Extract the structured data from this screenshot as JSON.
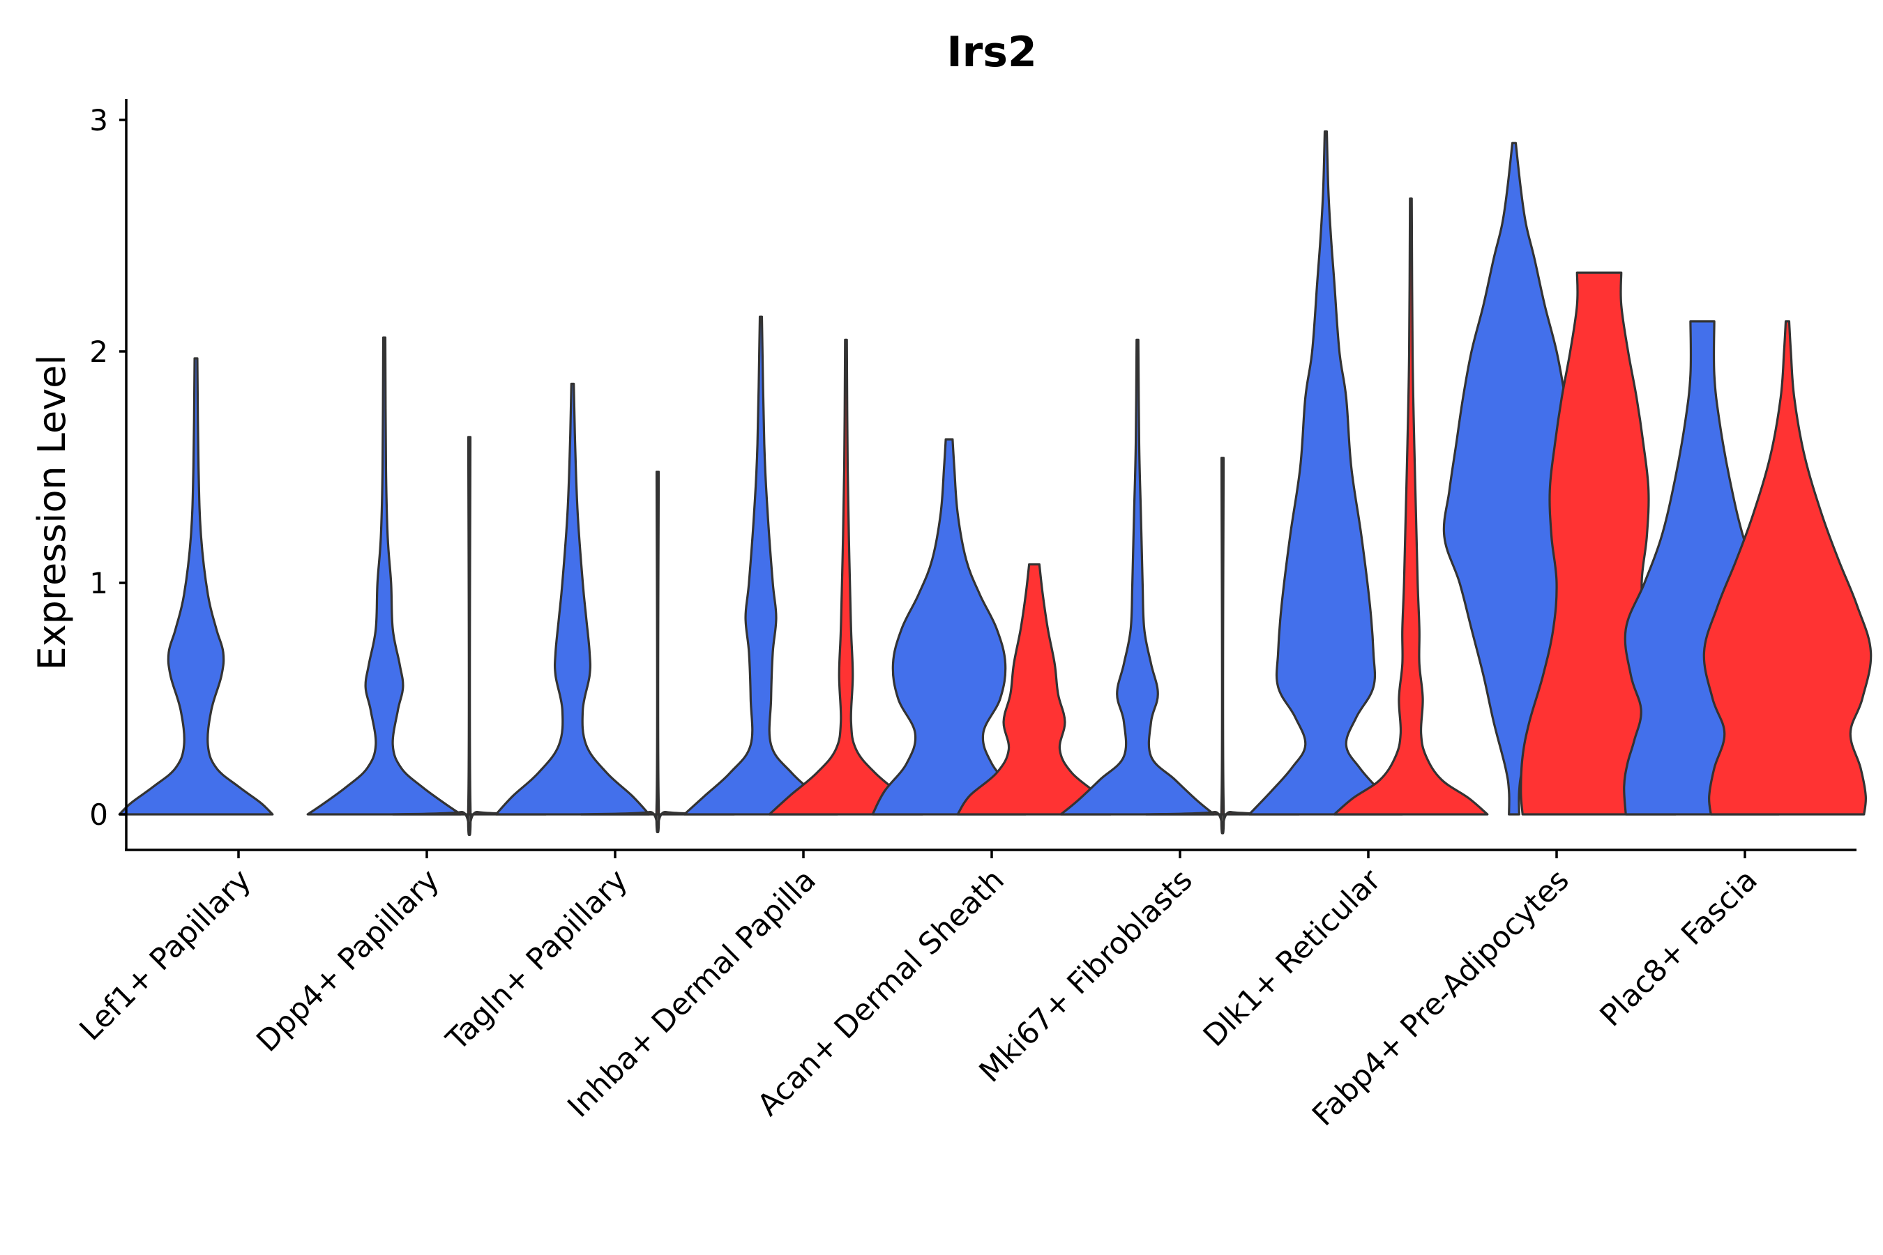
{
  "chart_data": {
    "type": "violin",
    "title": "Irs2",
    "xlabel": "",
    "ylabel": "Expression Level",
    "ylim": [
      -0.15,
      3.05
    ],
    "yticks": [
      0,
      1,
      2,
      3
    ],
    "grid": false,
    "colors": {
      "group1": "#4370EB",
      "group2": "#FF3333"
    },
    "categories": [
      "Lef1+ Papillary",
      "Dpp4+ Papillary",
      "Tagln+ Papillary",
      "Inhba+ Dermal Papilla",
      "Acan+ Dermal Sheath",
      "Mki67+ Fibroblasts",
      "Dlk1+ Reticular",
      "Fabp4+ Pre-Adipocytes",
      "Plac8+ Fascia"
    ],
    "violins": [
      {
        "category": 0,
        "group": "group1",
        "max": 1.97,
        "profile": [
          [
            0,
            0.45
          ],
          [
            0.05,
            0.38
          ],
          [
            0.12,
            0.25
          ],
          [
            0.2,
            0.12
          ],
          [
            0.3,
            0.07
          ],
          [
            0.45,
            0.09
          ],
          [
            0.6,
            0.15
          ],
          [
            0.7,
            0.16
          ],
          [
            0.8,
            0.12
          ],
          [
            0.95,
            0.07
          ],
          [
            1.2,
            0.03
          ],
          [
            1.5,
            0.015
          ],
          [
            1.97,
            0.008
          ]
        ]
      },
      {
        "category": 1,
        "group": "group1",
        "max": 2.06,
        "profile": [
          [
            0,
            0.45
          ],
          [
            0.05,
            0.35
          ],
          [
            0.12,
            0.22
          ],
          [
            0.2,
            0.1
          ],
          [
            0.3,
            0.05
          ],
          [
            0.45,
            0.08
          ],
          [
            0.55,
            0.11
          ],
          [
            0.65,
            0.09
          ],
          [
            0.8,
            0.05
          ],
          [
            1.0,
            0.04
          ],
          [
            1.2,
            0.02
          ],
          [
            1.5,
            0.01
          ],
          [
            2.06,
            0.006
          ]
        ]
      },
      {
        "category": 1,
        "group": "group2",
        "max": 1.63,
        "profile": [
          [
            0,
            0.45
          ],
          [
            0.01,
            0.05
          ],
          [
            0.05,
            0.006
          ],
          [
            1.63,
            0.006
          ]
        ]
      },
      {
        "category": 2,
        "group": "group1",
        "max": 1.86,
        "profile": [
          [
            0,
            0.45
          ],
          [
            0.08,
            0.35
          ],
          [
            0.18,
            0.2
          ],
          [
            0.3,
            0.08
          ],
          [
            0.45,
            0.06
          ],
          [
            0.6,
            0.1
          ],
          [
            0.7,
            0.1
          ],
          [
            0.85,
            0.08
          ],
          [
            1.0,
            0.06
          ],
          [
            1.3,
            0.03
          ],
          [
            1.6,
            0.015
          ],
          [
            1.86,
            0.007
          ]
        ]
      },
      {
        "category": 2,
        "group": "group2",
        "max": 1.48,
        "profile": [
          [
            0,
            0.45
          ],
          [
            0.01,
            0.05
          ],
          [
            0.05,
            0.006
          ],
          [
            1.48,
            0.006
          ]
        ]
      },
      {
        "category": 3,
        "group": "group1",
        "max": 2.15,
        "profile": [
          [
            0,
            0.45
          ],
          [
            0.08,
            0.33
          ],
          [
            0.18,
            0.18
          ],
          [
            0.3,
            0.06
          ],
          [
            0.5,
            0.06
          ],
          [
            0.7,
            0.07
          ],
          [
            0.85,
            0.09
          ],
          [
            1.0,
            0.07
          ],
          [
            1.3,
            0.04
          ],
          [
            1.6,
            0.02
          ],
          [
            2.15,
            0.006
          ]
        ]
      },
      {
        "category": 3,
        "group": "group2",
        "max": 2.05,
        "profile": [
          [
            0,
            0.45
          ],
          [
            0.08,
            0.33
          ],
          [
            0.18,
            0.17
          ],
          [
            0.28,
            0.06
          ],
          [
            0.4,
            0.03
          ],
          [
            0.6,
            0.04
          ],
          [
            0.8,
            0.03
          ],
          [
            1.1,
            0.02
          ],
          [
            1.5,
            0.01
          ],
          [
            2.05,
            0.005
          ]
        ]
      },
      {
        "category": 4,
        "group": "group1",
        "max": 1.62,
        "profile": [
          [
            0,
            0.45
          ],
          [
            0.1,
            0.38
          ],
          [
            0.22,
            0.25
          ],
          [
            0.35,
            0.2
          ],
          [
            0.5,
            0.3
          ],
          [
            0.65,
            0.33
          ],
          [
            0.8,
            0.28
          ],
          [
            0.95,
            0.18
          ],
          [
            1.1,
            0.1
          ],
          [
            1.3,
            0.05
          ],
          [
            1.5,
            0.03
          ],
          [
            1.62,
            0.02
          ]
        ]
      },
      {
        "category": 4,
        "group": "group2",
        "max": 1.08,
        "profile": [
          [
            0,
            0.45
          ],
          [
            0.08,
            0.38
          ],
          [
            0.18,
            0.22
          ],
          [
            0.28,
            0.15
          ],
          [
            0.4,
            0.18
          ],
          [
            0.52,
            0.14
          ],
          [
            0.65,
            0.12
          ],
          [
            0.8,
            0.08
          ],
          [
            0.95,
            0.05
          ],
          [
            1.08,
            0.03
          ]
        ]
      },
      {
        "category": 5,
        "group": "group1",
        "max": 2.05,
        "profile": [
          [
            0,
            0.45
          ],
          [
            0.06,
            0.35
          ],
          [
            0.15,
            0.22
          ],
          [
            0.25,
            0.08
          ],
          [
            0.4,
            0.08
          ],
          [
            0.52,
            0.12
          ],
          [
            0.65,
            0.08
          ],
          [
            0.8,
            0.04
          ],
          [
            1.0,
            0.03
          ],
          [
            1.3,
            0.02
          ],
          [
            1.6,
            0.01
          ],
          [
            2.05,
            0.005
          ]
        ]
      },
      {
        "category": 5,
        "group": "group2",
        "max": 1.54,
        "profile": [
          [
            0,
            0.45
          ],
          [
            0.01,
            0.05
          ],
          [
            0.05,
            0.006
          ],
          [
            1.54,
            0.006
          ]
        ]
      },
      {
        "category": 6,
        "group": "group1",
        "max": 2.95,
        "profile": [
          [
            0,
            0.45
          ],
          [
            0.1,
            0.32
          ],
          [
            0.2,
            0.2
          ],
          [
            0.3,
            0.12
          ],
          [
            0.42,
            0.18
          ],
          [
            0.55,
            0.28
          ],
          [
            0.7,
            0.28
          ],
          [
            0.9,
            0.26
          ],
          [
            1.2,
            0.21
          ],
          [
            1.5,
            0.15
          ],
          [
            1.8,
            0.12
          ],
          [
            2.0,
            0.08
          ],
          [
            2.3,
            0.05
          ],
          [
            2.5,
            0.03
          ],
          [
            2.7,
            0.015
          ],
          [
            2.95,
            0.006
          ]
        ]
      },
      {
        "category": 6,
        "group": "group2",
        "max": 2.66,
        "profile": [
          [
            0,
            0.45
          ],
          [
            0.07,
            0.34
          ],
          [
            0.15,
            0.18
          ],
          [
            0.25,
            0.09
          ],
          [
            0.35,
            0.06
          ],
          [
            0.5,
            0.07
          ],
          [
            0.65,
            0.05
          ],
          [
            0.8,
            0.05
          ],
          [
            1.0,
            0.04
          ],
          [
            1.3,
            0.03
          ],
          [
            1.6,
            0.02
          ],
          [
            2.0,
            0.01
          ],
          [
            2.66,
            0.005
          ]
        ]
      },
      {
        "category": 7,
        "group": "group1",
        "max": 2.9,
        "profile": [
          [
            0,
            0.03
          ],
          [
            0.1,
            0.03
          ],
          [
            0.2,
            0.05
          ],
          [
            0.4,
            0.12
          ],
          [
            0.6,
            0.18
          ],
          [
            0.8,
            0.25
          ],
          [
            1.0,
            0.32
          ],
          [
            1.2,
            0.41
          ],
          [
            1.4,
            0.38
          ],
          [
            1.6,
            0.34
          ],
          [
            1.8,
            0.3
          ],
          [
            2.0,
            0.25
          ],
          [
            2.2,
            0.18
          ],
          [
            2.4,
            0.12
          ],
          [
            2.55,
            0.07
          ],
          [
            2.7,
            0.04
          ],
          [
            2.9,
            0.01
          ]
        ]
      },
      {
        "category": 7,
        "group": "group2",
        "max": 2.34,
        "profile": [
          [
            0,
            0.45
          ],
          [
            0.1,
            0.46
          ],
          [
            0.25,
            0.45
          ],
          [
            0.4,
            0.41
          ],
          [
            0.6,
            0.33
          ],
          [
            0.8,
            0.27
          ],
          [
            1.0,
            0.25
          ],
          [
            1.2,
            0.28
          ],
          [
            1.4,
            0.29
          ],
          [
            1.6,
            0.26
          ],
          [
            1.8,
            0.22
          ],
          [
            2.0,
            0.17
          ],
          [
            2.2,
            0.13
          ],
          [
            2.34,
            0.13
          ]
        ]
      },
      {
        "category": 8,
        "group": "group1",
        "max": 2.13,
        "profile": [
          [
            0,
            0.45
          ],
          [
            0.12,
            0.46
          ],
          [
            0.22,
            0.44
          ],
          [
            0.32,
            0.4
          ],
          [
            0.45,
            0.36
          ],
          [
            0.6,
            0.42
          ],
          [
            0.8,
            0.45
          ],
          [
            1.0,
            0.34
          ],
          [
            1.2,
            0.24
          ],
          [
            1.45,
            0.16
          ],
          [
            1.7,
            0.1
          ],
          [
            1.9,
            0.07
          ],
          [
            2.13,
            0.07
          ]
        ]
      },
      {
        "category": 8,
        "group": "group2",
        "max": 2.13,
        "profile": [
          [
            0,
            0.45
          ],
          [
            0.08,
            0.46
          ],
          [
            0.2,
            0.43
          ],
          [
            0.35,
            0.37
          ],
          [
            0.5,
            0.44
          ],
          [
            0.7,
            0.49
          ],
          [
            0.9,
            0.41
          ],
          [
            1.1,
            0.3
          ],
          [
            1.3,
            0.2
          ],
          [
            1.55,
            0.1
          ],
          [
            1.8,
            0.04
          ],
          [
            2.0,
            0.02
          ],
          [
            2.13,
            0.01
          ]
        ]
      }
    ]
  }
}
